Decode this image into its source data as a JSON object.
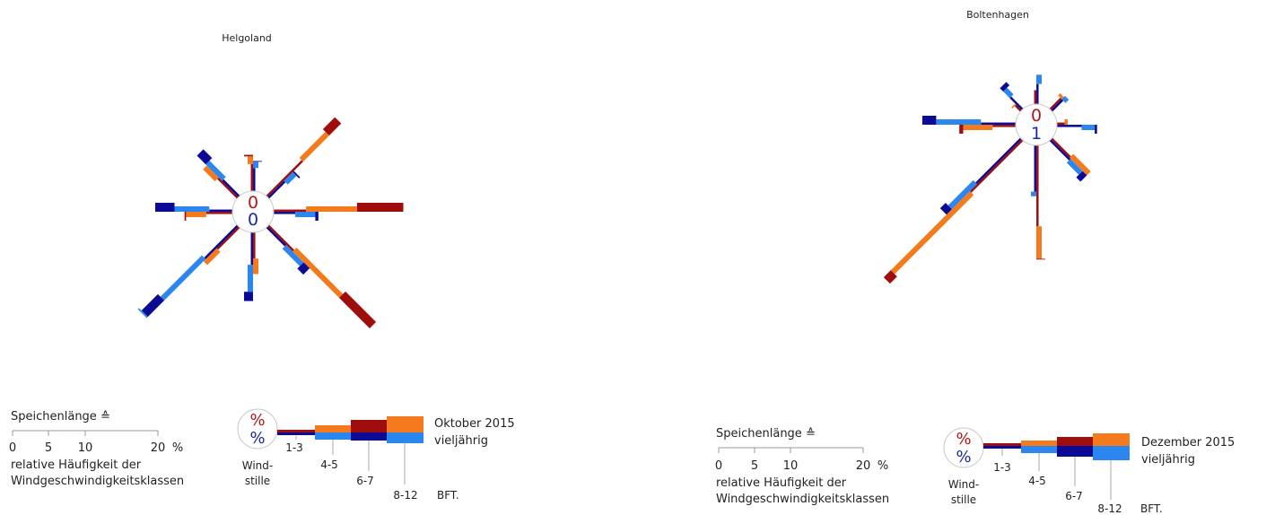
{
  "chart_data": [
    {
      "type": "wind-rose",
      "title": "Helgoland",
      "period_current": "Oktober 2015",
      "period_longterm": "vieljährig",
      "calm_current": "0",
      "calm_longterm": "0",
      "directions": [
        "N",
        "NE",
        "E",
        "SE",
        "S",
        "SW",
        "W",
        "NW"
      ],
      "class_labels": [
        "1-3",
        "4-5",
        "6-7",
        "8-12"
      ],
      "series": [
        {
          "name": "Oktober 2015",
          "values_by_direction": [
            [
              3.5,
              1.0,
              0.2,
              0.0
            ],
            [
              6.5,
              4.8,
              2.2,
              0.0
            ],
            [
              4.2,
              6.6,
              6.0,
              0.0
            ],
            [
              4.6,
              8.5,
              5.6,
              0.0
            ],
            [
              3.4,
              2.0,
              0.0,
              0.0
            ],
            [
              4.0,
              2.4,
              0.0,
              0.0
            ],
            [
              3.4,
              2.6,
              0.2,
              0.0
            ],
            [
              3.6,
              2.2,
              0.0,
              0.0
            ]
          ]
        },
        {
          "name": "vieljährig",
          "values_by_direction": [
            [
              3.0,
              0.8,
              0.1,
              0.0
            ],
            [
              3.0,
              1.6,
              0.2,
              0.0
            ],
            [
              2.8,
              2.6,
              0.4,
              0.0
            ],
            [
              3.4,
              3.2,
              1.1,
              0.0
            ],
            [
              4.2,
              3.5,
              1.2,
              0.0
            ],
            [
              6.0,
              7.6,
              3.0,
              0.2
            ],
            [
              3.0,
              4.5,
              2.5,
              0.0
            ],
            [
              3.0,
              3.0,
              1.6,
              0.0
            ]
          ]
        }
      ],
      "legend": {
        "scale_title": "Speichenlänge ≙",
        "scale_ticks": [
          "0",
          "5",
          "10",
          "20"
        ],
        "scale_unit": "%",
        "scale_caption_1": "relative Häufigkeit der",
        "scale_caption_2": "Windgeschwindigkeitsklassen",
        "calm_symbol": "%",
        "calm_label_1": "Wind-",
        "calm_label_2": "stille",
        "unit_label": "BFT."
      }
    },
    {
      "type": "wind-rose",
      "title": "Boltenhagen",
      "period_current": "Dezember 2015",
      "period_longterm": "vieljährig",
      "calm_current": "0",
      "calm_longterm": "1",
      "directions": [
        "N",
        "NE",
        "E",
        "SE",
        "S",
        "SW",
        "W",
        "NW"
      ],
      "class_labels": [
        "1-3",
        "4-5",
        "6-7",
        "8-12"
      ],
      "series": [
        {
          "name": "Dezember 2015",
          "values_by_direction": [
            [
              1.8,
              0.0,
              0.0,
              0.0
            ],
            [
              2.0,
              0.4,
              0.0,
              0.0
            ],
            [
              1.0,
              0.4,
              0.0,
              0.0
            ],
            [
              3.4,
              3.2,
              0.0,
              0.0
            ],
            [
              10.5,
              4.2,
              0.1,
              0.0
            ],
            [
              9.5,
              14.5,
              1.3,
              0.0
            ],
            [
              3.0,
              3.8,
              0.5,
              0.0
            ],
            [
              1.0,
              0.2,
              0.0,
              0.0
            ]
          ]
        },
        {
          "name": "vieljährig",
          "values_by_direction": [
            [
              2.6,
              1.2,
              0.0,
              0.0
            ],
            [
              2.0,
              0.6,
              0.0,
              0.0
            ],
            [
              3.2,
              1.7,
              0.3,
              0.0
            ],
            [
              3.6,
              2.2,
              0.8,
              0.0
            ],
            [
              6.0,
              0.6,
              0.0,
              0.0
            ],
            [
              8.2,
              4.6,
              1.0,
              0.0
            ],
            [
              4.5,
              5.8,
              1.8,
              0.0
            ],
            [
              2.2,
              1.2,
              0.6,
              0.0
            ]
          ]
        }
      ],
      "legend": {
        "scale_title": "Speichenlänge ≙",
        "scale_ticks": [
          "0",
          "5",
          "10",
          "20"
        ],
        "scale_unit": "%",
        "scale_caption_1": "relative Häufigkeit der",
        "scale_caption_2": "Windgeschwindigkeitsklassen",
        "calm_symbol": "%",
        "calm_label_1": "Wind-",
        "calm_label_2": "stille",
        "unit_label": "BFT."
      }
    }
  ],
  "colors": {
    "current_dark": "#a00d0d",
    "current_light": "#f57a1c",
    "longterm_dark": "#0a0a96",
    "longterm_light": "#2b86f0",
    "calm_current": "#b0181b",
    "calm_longterm": "#1a2aa0"
  }
}
